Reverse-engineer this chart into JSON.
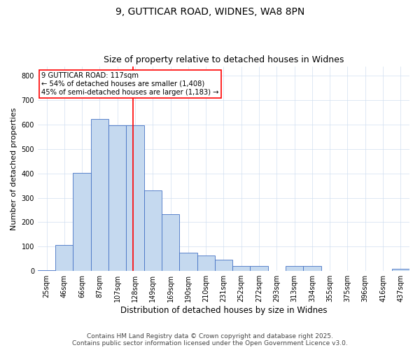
{
  "title_line1": "9, GUTTICAR ROAD, WIDNES, WA8 8PN",
  "title_line2": "Size of property relative to detached houses in Widnes",
  "xlabel": "Distribution of detached houses by size in Widnes",
  "ylabel": "Number of detached properties",
  "bar_labels": [
    "25sqm",
    "46sqm",
    "66sqm",
    "87sqm",
    "107sqm",
    "128sqm",
    "149sqm",
    "169sqm",
    "190sqm",
    "210sqm",
    "231sqm",
    "252sqm",
    "272sqm",
    "293sqm",
    "313sqm",
    "334sqm",
    "355sqm",
    "375sqm",
    "396sqm",
    "416sqm",
    "437sqm"
  ],
  "bar_values": [
    3,
    107,
    403,
    622,
    597,
    597,
    330,
    233,
    75,
    62,
    47,
    20,
    20,
    0,
    20,
    20,
    0,
    0,
    0,
    0,
    10
  ],
  "bar_color": "#C5D9EF",
  "bar_edge_color": "#4472C4",
  "vline_x": 4.9,
  "vline_color": "#FF0000",
  "annotation_text": "9 GUTTICAR ROAD: 117sqm\n← 54% of detached houses are smaller (1,408)\n45% of semi-detached houses are larger (1,183) →",
  "annotation_box_color": "#FF0000",
  "ylim": [
    0,
    840
  ],
  "yticks": [
    0,
    100,
    200,
    300,
    400,
    500,
    600,
    700,
    800
  ],
  "footer_line1": "Contains HM Land Registry data © Crown copyright and database right 2025.",
  "footer_line2": "Contains public sector information licensed under the Open Government Licence v3.0.",
  "bg_color": "#FFFFFF",
  "grid_color": "#D0DFF0",
  "fig_width": 6.0,
  "fig_height": 5.0,
  "title1_fontsize": 10,
  "title2_fontsize": 9,
  "ylabel_fontsize": 8,
  "xlabel_fontsize": 8.5,
  "tick_fontsize": 7,
  "footer_fontsize": 6.5
}
